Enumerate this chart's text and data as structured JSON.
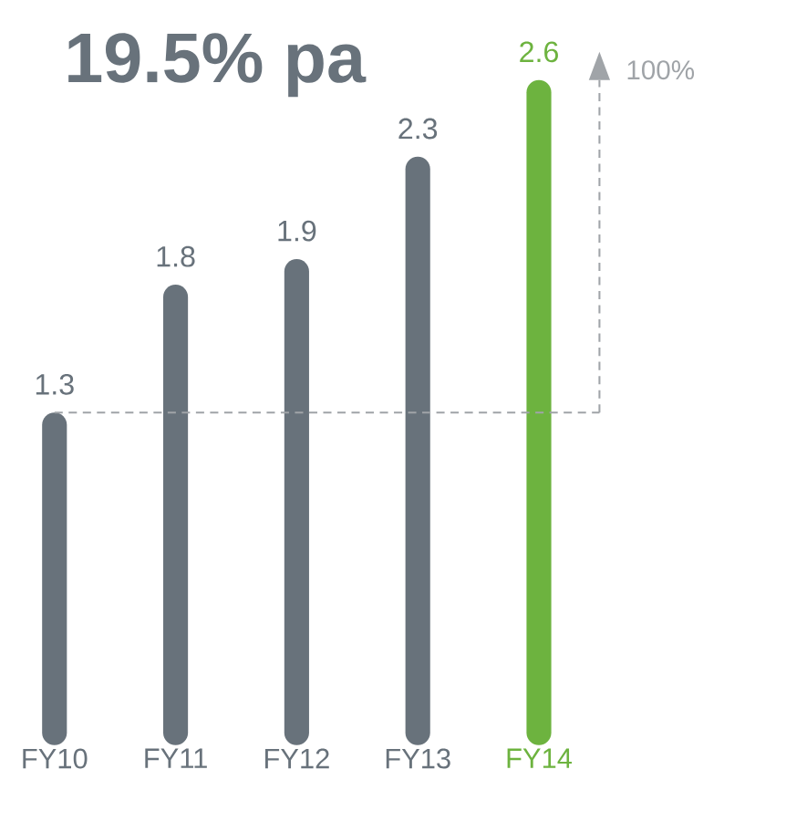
{
  "chart_data": {
    "type": "bar",
    "title": "19.5% pa",
    "categories": [
      "FY10",
      "FY11",
      "FY12",
      "FY13",
      "FY14"
    ],
    "values": [
      1.3,
      1.8,
      1.9,
      2.3,
      2.6
    ],
    "colors": [
      "#68727b",
      "#68727b",
      "#68727b",
      "#68727b",
      "#6db33f"
    ],
    "data_labels": true,
    "ref_lines": [
      {
        "axis": "y",
        "value": 1.3,
        "color": "#a0a4a8",
        "line_style": "dashed"
      }
    ],
    "annotations": [
      "100%"
    ]
  }
}
